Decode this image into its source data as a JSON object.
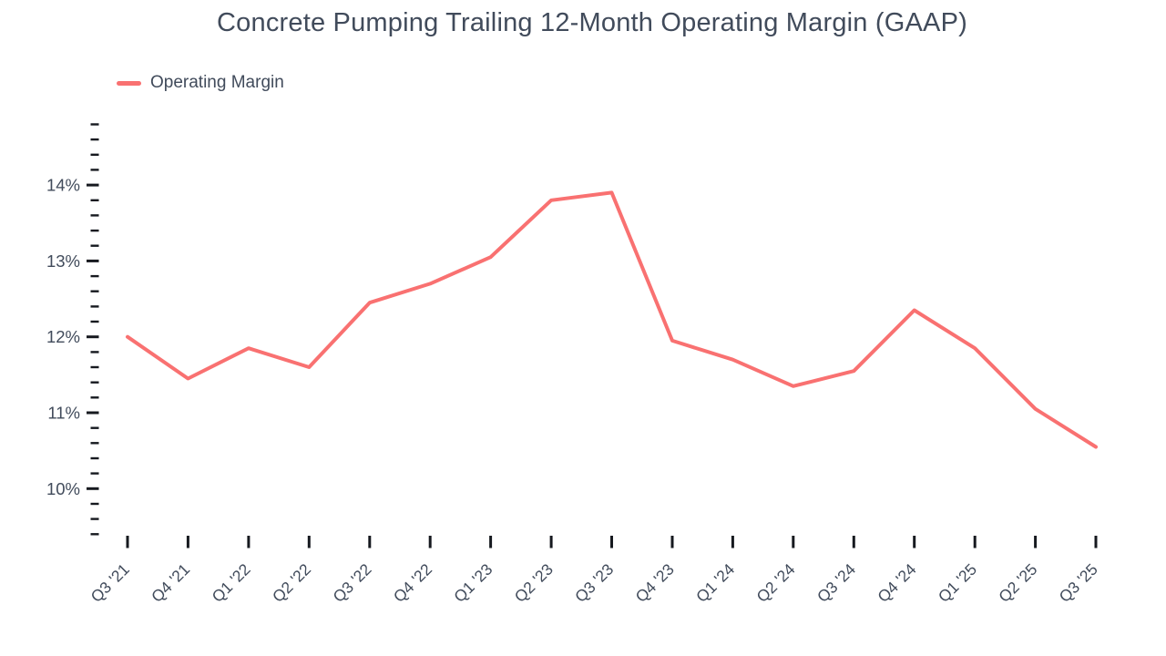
{
  "header": {
    "title": "Concrete Pumping Trailing 12-Month Operating Margin (GAAP)"
  },
  "legend": {
    "items": [
      {
        "label": "Operating Margin",
        "color": "#f97171"
      }
    ]
  },
  "chart_data": {
    "type": "line",
    "title": "Concrete Pumping Trailing 12-Month Operating Margin (GAAP)",
    "categories": [
      "Q3 '21",
      "Q4 '21",
      "Q1 '22",
      "Q2 '22",
      "Q3 '22",
      "Q4 '22",
      "Q1 '23",
      "Q2 '23",
      "Q3 '23",
      "Q4 '23",
      "Q1 '24",
      "Q2 '24",
      "Q3 '24",
      "Q4 '24",
      "Q1 '25",
      "Q2 '25",
      "Q3 '25"
    ],
    "series": [
      {
        "name": "Operating Margin",
        "color": "#f97171",
        "values": [
          12.0,
          11.45,
          11.85,
          11.6,
          12.45,
          12.7,
          13.05,
          13.8,
          13.9,
          11.95,
          11.7,
          11.35,
          11.55,
          12.35,
          11.85,
          11.05,
          10.55
        ]
      }
    ],
    "xlabel": "",
    "ylabel": "",
    "unit": "%",
    "ylim": [
      9.4,
      14.8
    ],
    "y_major_ticks": [
      10,
      11,
      12,
      13,
      14
    ],
    "y_tick_labels": [
      "10%",
      "11%",
      "12%",
      "13%",
      "14%"
    ],
    "y_minor_tick_step": 0.2,
    "grid": false,
    "legend_position": "top-left",
    "colors": {
      "series": "#f97171",
      "text": "#414b5b",
      "tick": "#16191f",
      "background": "#ffffff"
    }
  }
}
